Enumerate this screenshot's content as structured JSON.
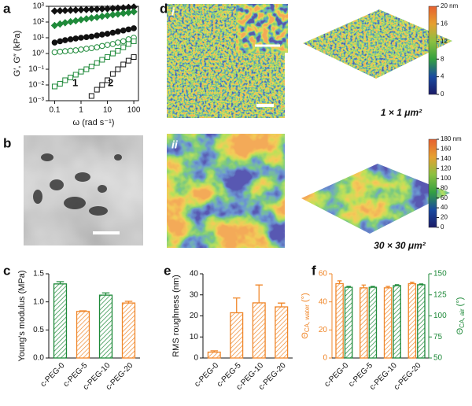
{
  "chart_data": [
    {
      "type": "scatter",
      "panel": "a",
      "xlabel": "ω (rad s⁻¹)",
      "ylabel": "G′, G″ (kPa)",
      "log_x": true,
      "log_y": true,
      "xlim": [
        0.06,
        150
      ],
      "ylim": [
        0.001,
        1000
      ],
      "xticks": [
        0.1,
        1,
        10,
        100
      ],
      "yticks": [
        {
          "value": 0.001,
          "label": "10⁻³"
        },
        {
          "value": 0.01,
          "label": "10⁻²"
        },
        {
          "value": 0.1,
          "label": "10⁻¹"
        },
        {
          "value": 1,
          "label": "10⁰"
        },
        {
          "value": 10,
          "label": "10¹"
        },
        {
          "value": 100,
          "label": "10²"
        },
        {
          "value": 1000,
          "label": "10³"
        }
      ],
      "annotations": [
        "1",
        "2"
      ],
      "x": [
        0.1,
        0.16,
        0.25,
        0.4,
        0.63,
        1,
        1.6,
        2.5,
        4,
        6.3,
        10,
        16,
        25,
        40,
        63,
        100
      ],
      "series": [
        {
          "color": "#111111",
          "marker": "diamond",
          "filled": true,
          "values": [
            500,
            520,
            540,
            560,
            580,
            600,
            620,
            640,
            660,
            680,
            700,
            730,
            760,
            800,
            850,
            900
          ]
        },
        {
          "color": "#1f8a3a",
          "marker": "diamond",
          "filled": true,
          "values": [
            60,
            75,
            90,
            105,
            120,
            140,
            160,
            180,
            200,
            230,
            260,
            290,
            320,
            360,
            400,
            450
          ]
        },
        {
          "color": "#111111",
          "marker": "circle",
          "filled": true,
          "values": [
            5,
            6,
            7,
            8,
            9,
            10,
            11,
            12,
            14,
            16,
            18,
            21,
            25,
            29,
            34,
            40
          ]
        },
        {
          "color": "#1f8a3a",
          "marker": "circle",
          "filled": false,
          "values": [
            1.2,
            1.3,
            1.4,
            1.5,
            1.6,
            1.8,
            2,
            2.2,
            2.5,
            3,
            3.5,
            4,
            5,
            6,
            8,
            10
          ]
        },
        {
          "color": "#1f8a3a",
          "marker": "square",
          "filled": false,
          "values": [
            0.008,
            0.012,
            0.02,
            0.03,
            0.045,
            0.07,
            0.1,
            0.15,
            0.25,
            0.4,
            0.6,
            1,
            1.5,
            2.5,
            4,
            6
          ]
        },
        {
          "color": "#111111",
          "marker": "square",
          "filled": false,
          "values": [
            null,
            null,
            null,
            null,
            null,
            null,
            null,
            0.002,
            0.005,
            0.01,
            0.02,
            0.05,
            0.1,
            0.2,
            0.35,
            0.6
          ]
        }
      ]
    },
    {
      "type": "bar",
      "panel": "c",
      "ylabel": "Young's modulus (MPa)",
      "ylim": [
        0,
        1.5
      ],
      "yticks": [
        {
          "value": 0,
          "label": "0.0"
        },
        0.5,
        {
          "value": 1,
          "label": "1.0"
        },
        1.5
      ],
      "categories": [
        "c-PEG-0",
        "c-PEG-5",
        "c-PEG-10",
        "c-PEG-20"
      ],
      "series": [
        {
          "colors": [
            "#1f8a3a",
            "#f0872a",
            "#1f8a3a",
            "#f0872a"
          ],
          "values": [
            1.32,
            0.83,
            1.12,
            0.98
          ],
          "errors": [
            0.04,
            0.01,
            0.04,
            0.03
          ]
        }
      ]
    },
    {
      "type": "bar",
      "panel": "e",
      "ylabel": "RMS roughness (nm)",
      "ylim": [
        0,
        40
      ],
      "yticks": [
        0,
        10,
        20,
        30,
        40
      ],
      "categories": [
        "c-PEG-0",
        "c-PEG-5",
        "c-PEG-10",
        "c-PEG-20"
      ],
      "series": [
        {
          "color": "#f0872a",
          "values": [
            2.8,
            21.5,
            26.2,
            24.3
          ],
          "errors": [
            0.6,
            7,
            8.5,
            1.8
          ]
        }
      ]
    },
    {
      "type": "bar",
      "panel": "f",
      "ylabel": "Θ",
      "ylabel_sub": "CA, water",
      "ylabel_unit": " (°)",
      "y2label": "Θ",
      "y2label_sub": "CA, air",
      "y2label_unit": " (°)",
      "ylim": [
        0,
        60
      ],
      "yticks": [
        0,
        20,
        40,
        60
      ],
      "y2lim": [
        50,
        150
      ],
      "y2ticks": [
        50,
        75,
        100,
        125,
        150
      ],
      "ycolor": "#f0872a",
      "y2color": "#1f8a3a",
      "categories": [
        "c-PEG-0",
        "c-PEG-5",
        "c-PEG-10",
        "c-PEG-20"
      ],
      "series": [
        {
          "color": "#f0872a",
          "values": [
            53,
            50,
            50,
            53
          ],
          "errors": [
            2,
            2,
            1,
            1
          ]
        },
        {
          "color": "#1f8a3a",
          "axis": "y2",
          "values": [
            134,
            134,
            136,
            137
          ],
          "errors": [
            1,
            1,
            1,
            1
          ]
        }
      ]
    }
  ],
  "panels": {
    "b": "b",
    "d": "d"
  },
  "afm": [
    {
      "label": "i",
      "caption": "1 × 1 μm²",
      "ticks": [
        0,
        4,
        8,
        12,
        16,
        {
          "value": 20,
          "label": "20 nm"
        }
      ]
    },
    {
      "label": "ii",
      "caption": "30 × 30 μm²",
      "ticks": [
        0,
        20,
        40,
        60,
        80,
        100,
        120,
        140,
        160,
        {
          "value": 180,
          "label": "180 nm"
        }
      ]
    }
  ]
}
